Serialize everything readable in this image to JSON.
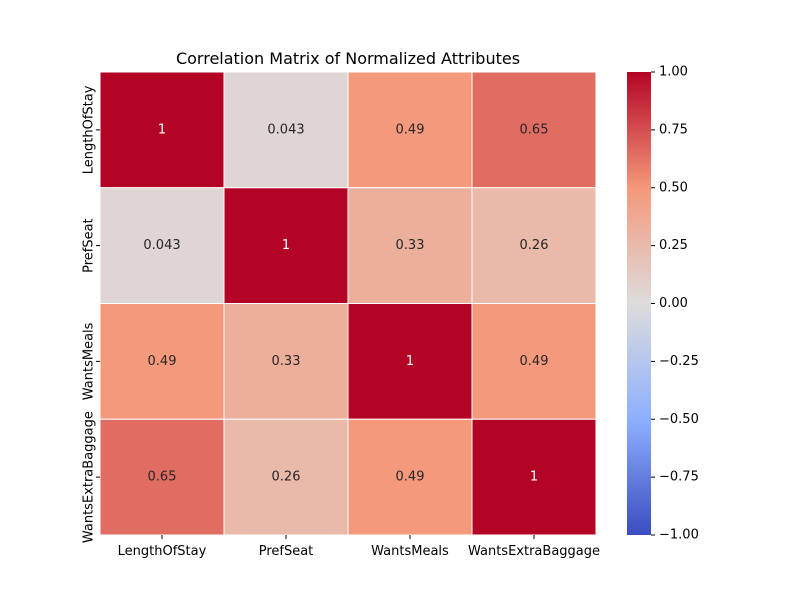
{
  "chart_data": {
    "type": "heatmap",
    "title": "Correlation Matrix of Normalized Attributes",
    "xlabel": "",
    "ylabel": "",
    "x_categories": [
      "LengthOfStay",
      "PrefSeat",
      "WantsMeals",
      "WantsExtraBaggage"
    ],
    "y_categories": [
      "LengthOfStay",
      "PrefSeat",
      "WantsMeals",
      "WantsExtraBaggage"
    ],
    "values": [
      [
        1.0,
        0.043,
        0.49,
        0.65
      ],
      [
        0.043,
        1.0,
        0.33,
        0.26
      ],
      [
        0.49,
        0.33,
        1.0,
        0.49
      ],
      [
        0.65,
        0.26,
        0.49,
        1.0
      ]
    ],
    "annotations": [
      [
        "1",
        "0.043",
        "0.49",
        "0.65"
      ],
      [
        "0.043",
        "1",
        "0.33",
        "0.26"
      ],
      [
        "0.49",
        "0.33",
        "1",
        "0.49"
      ],
      [
        "0.65",
        "0.26",
        "0.49",
        "1"
      ]
    ],
    "colormap": "coolwarm",
    "vmin": -1.0,
    "vmax": 1.0,
    "colorbar_ticks": [
      1.0,
      0.75,
      0.5,
      0.25,
      0.0,
      -0.25,
      -0.5,
      -0.75,
      -1.0
    ],
    "colorbar_tick_labels": [
      "1.00",
      "0.75",
      "0.50",
      "0.25",
      "0.00",
      "−0.25",
      "−0.50",
      "−0.75",
      "−1.00"
    ],
    "grid": false,
    "legend": "colorbar-right"
  }
}
